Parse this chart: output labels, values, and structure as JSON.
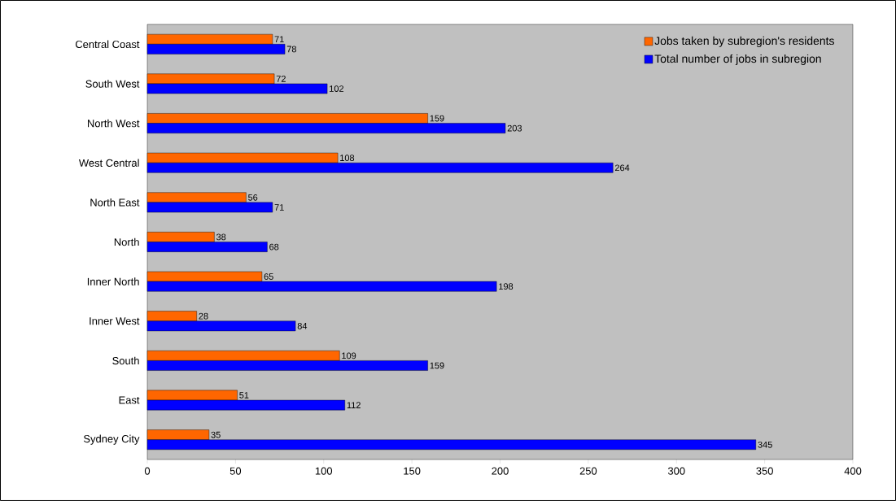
{
  "chart_data": {
    "type": "bar",
    "orientation": "horizontal",
    "categories": [
      "Central Coast",
      "South West",
      "North West",
      "West Central",
      "North East",
      "North",
      "Inner North",
      "Inner West",
      "South",
      "East",
      "Sydney City"
    ],
    "series": [
      {
        "name": "Jobs taken by subregion's residents",
        "color": "#ff6600",
        "values": [
          71,
          72,
          159,
          108,
          56,
          38,
          65,
          28,
          109,
          51,
          35
        ]
      },
      {
        "name": "Total number of jobs in subregion",
        "color": "#0000ff",
        "values": [
          78,
          102,
          203,
          264,
          71,
          68,
          198,
          84,
          159,
          112,
          345
        ]
      }
    ],
    "xlim": [
      0,
      400
    ],
    "xticks": [
      0,
      50,
      100,
      150,
      200,
      250,
      300,
      350,
      400
    ],
    "data_labels": true,
    "legend": "top right"
  }
}
